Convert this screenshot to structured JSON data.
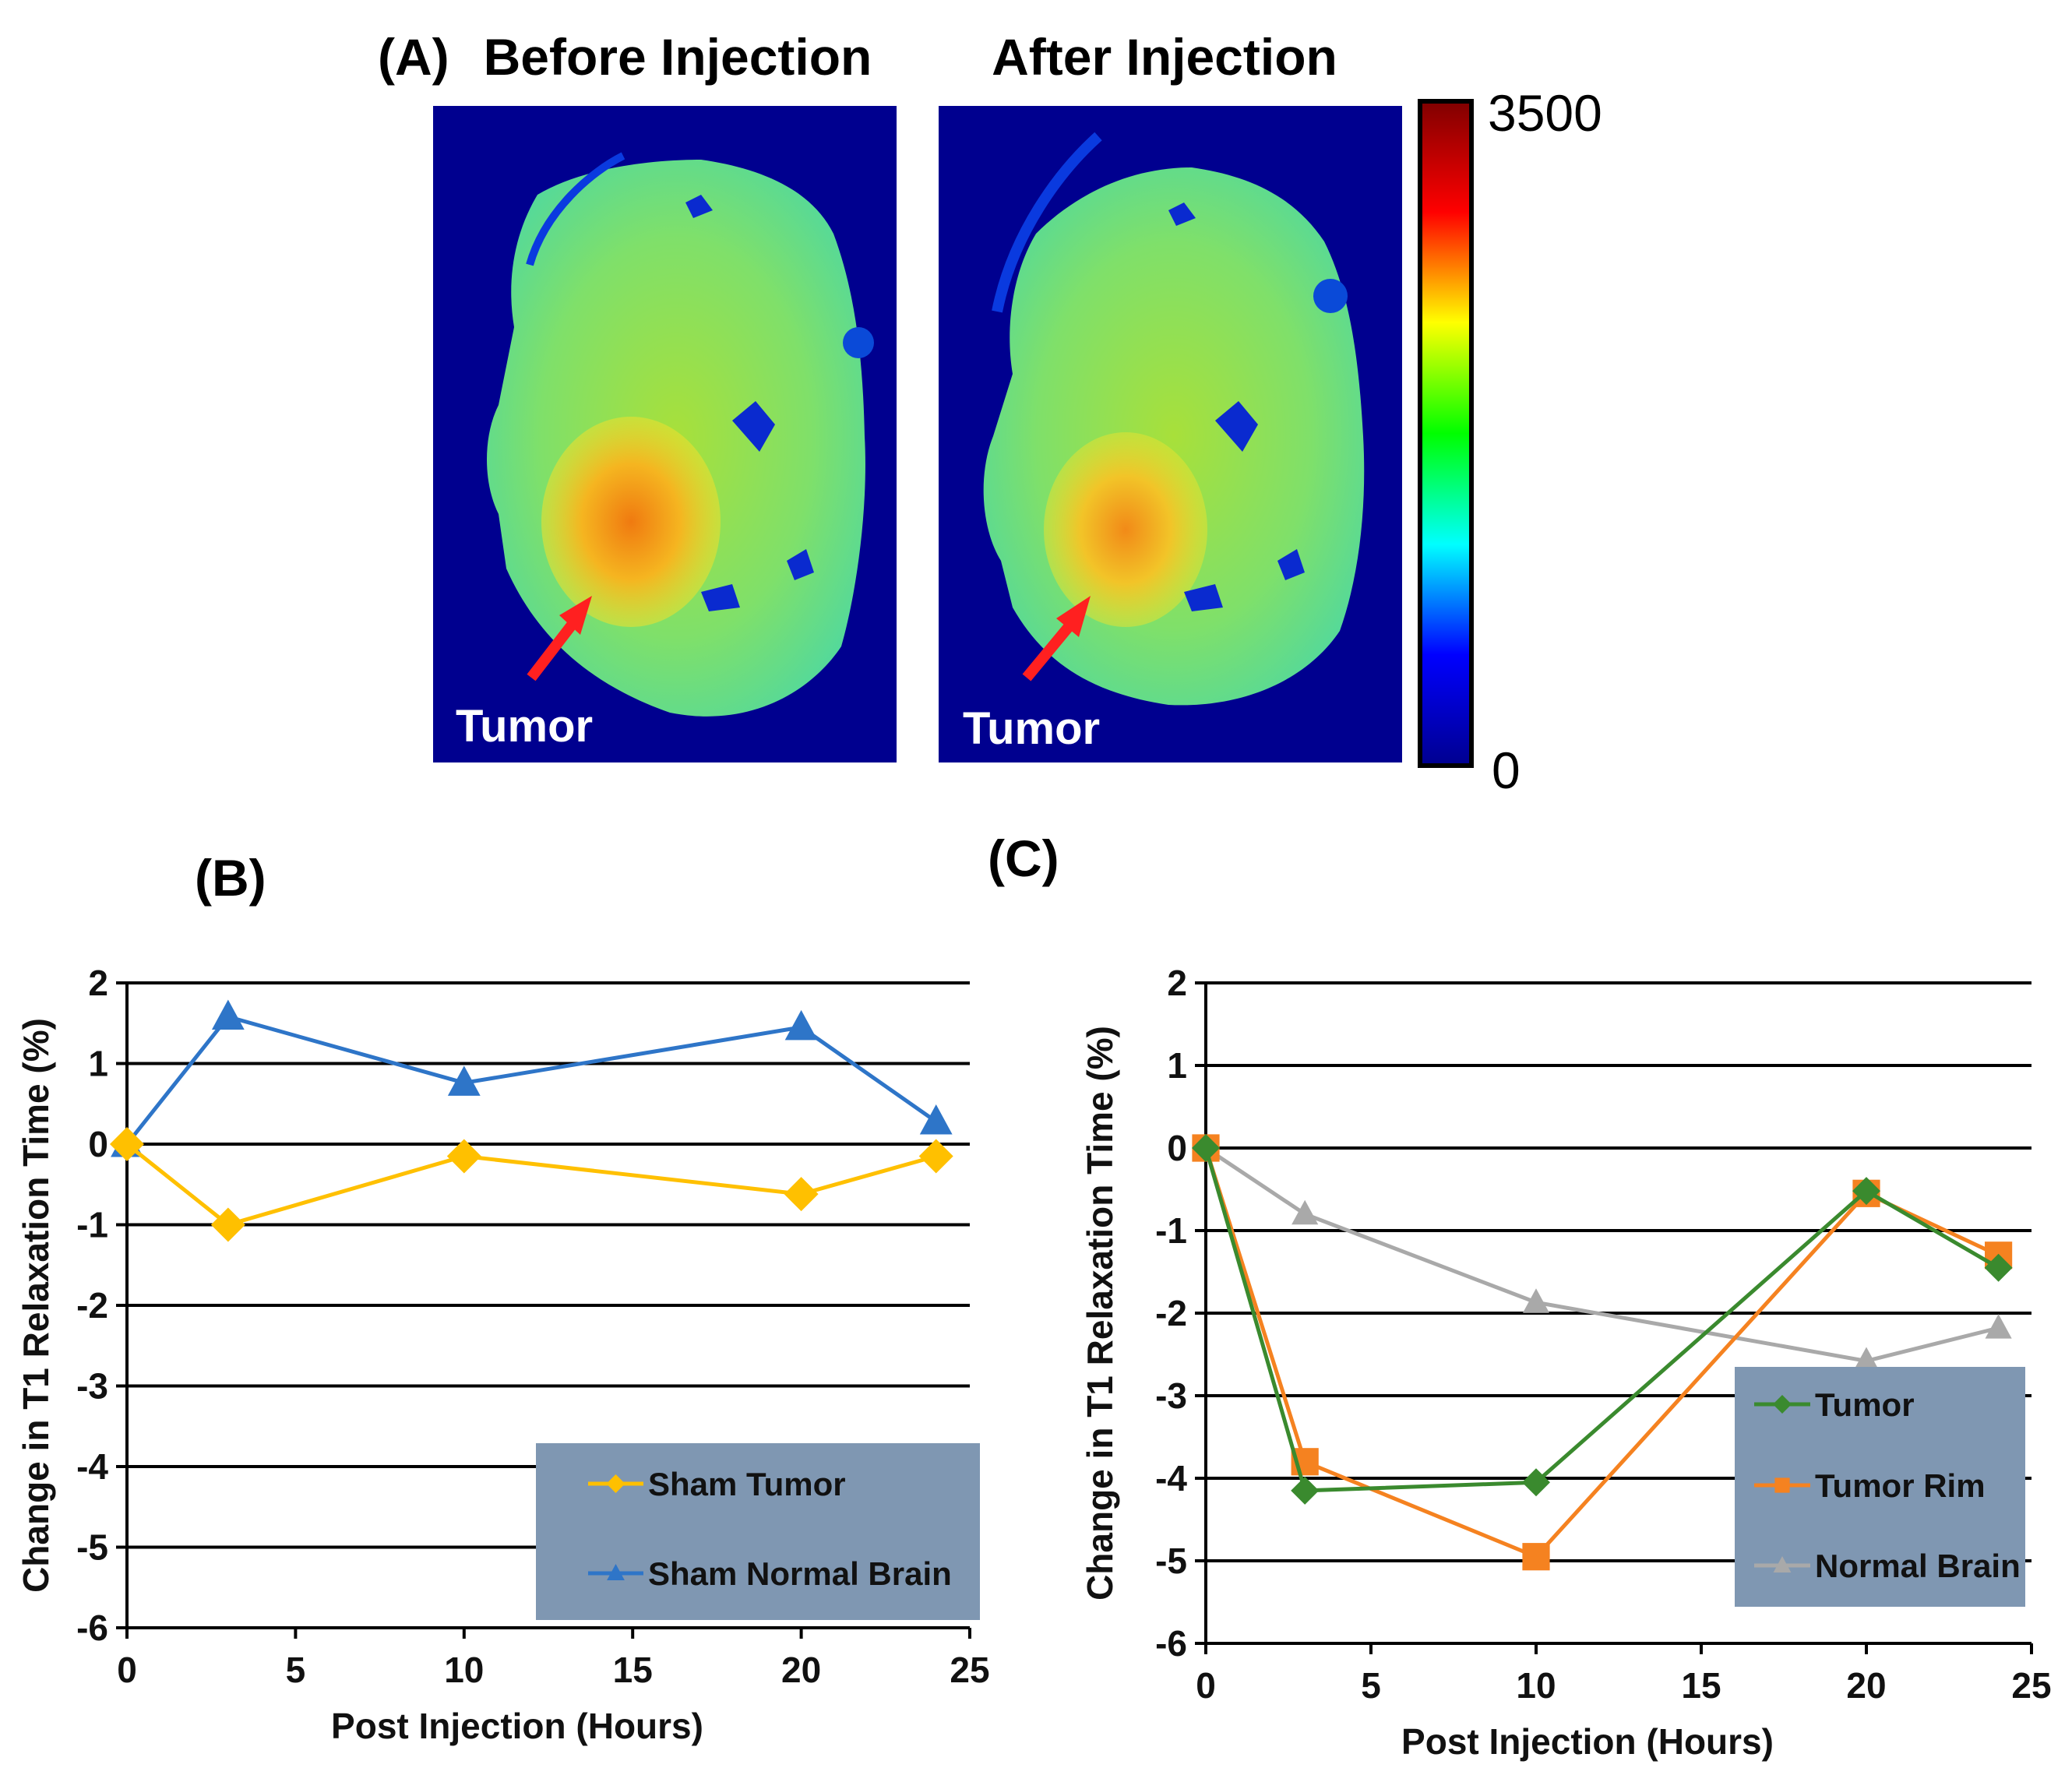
{
  "panel_a": {
    "label": "(A)",
    "titles": [
      "Before Injection",
      "After Injection"
    ],
    "tumor_labels": [
      "Tumor",
      "Tumor"
    ],
    "colorbar": {
      "max_label": "3500",
      "min_label": "0",
      "stops": [
        "#00008f",
        "#0000ff",
        "#00ffff",
        "#00ff00",
        "#ffff00",
        "#ff0000",
        "#800000"
      ]
    },
    "background_color": "#00008f",
    "arrow_color": "#ff2020"
  },
  "chart_data": [
    {
      "type": "line",
      "panel_label": "(B)",
      "x": [
        0,
        3,
        10,
        20,
        24
      ],
      "series": [
        {
          "name": "Sham Tumor",
          "values": [
            0,
            -1.0,
            -0.15,
            -0.62,
            -0.15
          ],
          "color": "#ffc000",
          "marker": "diamond"
        },
        {
          "name": "Sham Normal Brain",
          "values": [
            0,
            1.58,
            0.76,
            1.45,
            0.28
          ],
          "color": "#2e75c8",
          "marker": "triangle"
        }
      ],
      "xticks": [
        "0",
        "5",
        "10",
        "15",
        "20",
        "25"
      ],
      "yticks": [
        "2",
        "1",
        "0",
        "-1",
        "-2",
        "-3",
        "-4",
        "-5",
        "-6"
      ],
      "xlabel": "Post Injection (Hours)",
      "ylabel": "Change in T1 Relaxation Time (%)",
      "xlim": [
        0,
        25
      ],
      "ylim": [
        -6,
        2
      ],
      "grid": true,
      "legend_position": "bottom-right",
      "legend_bg": "#7f97b2"
    },
    {
      "type": "line",
      "panel_label": "(C)",
      "x": [
        0,
        3,
        10,
        20,
        24
      ],
      "series": [
        {
          "name": "Tumor",
          "values": [
            0,
            -4.15,
            -4.05,
            -0.52,
            -1.45
          ],
          "color": "#3a8a2e",
          "marker": "diamond"
        },
        {
          "name": "Tumor Rim",
          "values": [
            0,
            -3.8,
            -4.95,
            -0.55,
            -1.3
          ],
          "color": "#f58220",
          "marker": "square"
        },
        {
          "name": "Normal Brain",
          "values": [
            0,
            -0.8,
            -1.87,
            -2.58,
            -2.18
          ],
          "color": "#a9a9a9",
          "marker": "triangle"
        }
      ],
      "xticks": [
        "0",
        "5",
        "10",
        "15",
        "20",
        "25"
      ],
      "yticks": [
        "2",
        "1",
        "0",
        "-1",
        "-2",
        "-3",
        "-4",
        "-5",
        "-6"
      ],
      "xlabel": "Post Injection (Hours)",
      "ylabel": "Change in T1 Relaxation Time (%)",
      "xlim": [
        0,
        25
      ],
      "ylim": [
        -6,
        2
      ],
      "grid": true,
      "legend_position": "bottom-right",
      "legend_bg": "#7f97b2"
    }
  ]
}
